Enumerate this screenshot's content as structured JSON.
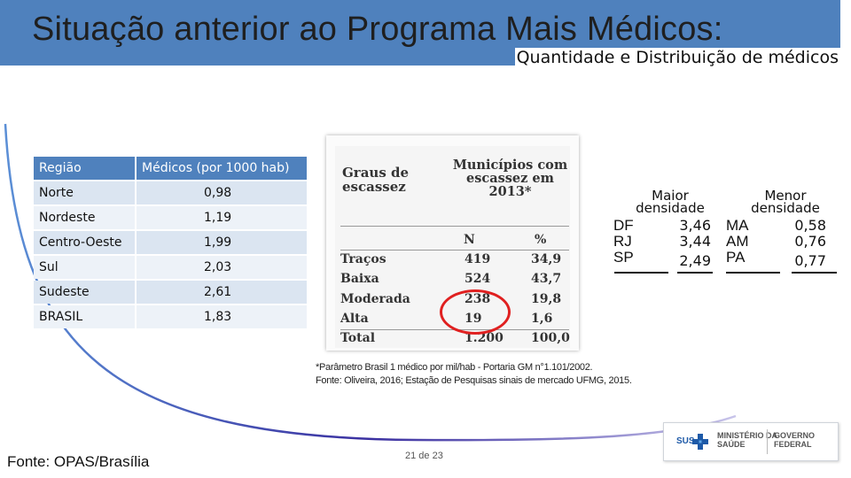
{
  "header": {
    "title": "Situação anterior ao Programa Mais Médicos:",
    "subtitle": "Quantidade e Distribuição de médicos"
  },
  "region_table": {
    "headers": [
      "Região",
      "Médicos (por 1000 hab)"
    ],
    "rows": [
      {
        "region": "Norte",
        "value": "0,98"
      },
      {
        "region": "Nordeste",
        "value": "1,19"
      },
      {
        "region": "Centro-Oeste",
        "value": "1,99"
      },
      {
        "region": "Sul",
        "value": "2,03"
      },
      {
        "region": "Sudeste",
        "value": "2,61"
      },
      {
        "region": "BRASIL",
        "value": "1,83"
      }
    ]
  },
  "scarcity_table": {
    "header_left": "Graus de escassez",
    "header_right": "Municípios com escassez em 2013*",
    "col_n": "N",
    "col_pct": "%",
    "rows": [
      {
        "grade": "Traços",
        "n": "419",
        "pct": "34,9"
      },
      {
        "grade": "Baixa",
        "n": "524",
        "pct": "43,7"
      },
      {
        "grade": "Moderada",
        "n": "238",
        "pct": "19,8"
      },
      {
        "grade": "Alta",
        "n": "19",
        "pct": "1,6"
      },
      {
        "grade": "Total",
        "n": "1.200",
        "pct": "100,0"
      }
    ],
    "highlight_color": "#e02020"
  },
  "density": {
    "higher": {
      "heading": "Maior densidade",
      "states": [
        "DF",
        "RJ",
        "SP"
      ],
      "values": [
        "3,46",
        "3,44",
        "2,49"
      ]
    },
    "lower": {
      "heading": "Menor densidade",
      "states": [
        "MA",
        "AM",
        "PA"
      ],
      "values": [
        "0,58",
        "0,76",
        "0,77"
      ]
    }
  },
  "footnote": {
    "line1": "*Parâmetro Brasil 1 médico por mil/hab - Portaria GM n°1.101/2002.",
    "line2": "Fonte: Oliveira, 2016; Estação de Pesquisas sinais de mercado UFMG, 2015."
  },
  "source": "Fonte: OPAS/Brasília",
  "page_number": "21 de 23",
  "logo": {
    "sus": "SUS",
    "ministry_line1": "MINISTÉRIO DA",
    "ministry_line2": "SAÚDE",
    "gov_line1": "GOVERNO",
    "gov_line2": "FEDERAL"
  },
  "colors": {
    "title_band": "#4f81bd",
    "table_header": "#4f81bd",
    "table_row": "#dbe5f1",
    "curve": "#4a3ea8"
  }
}
